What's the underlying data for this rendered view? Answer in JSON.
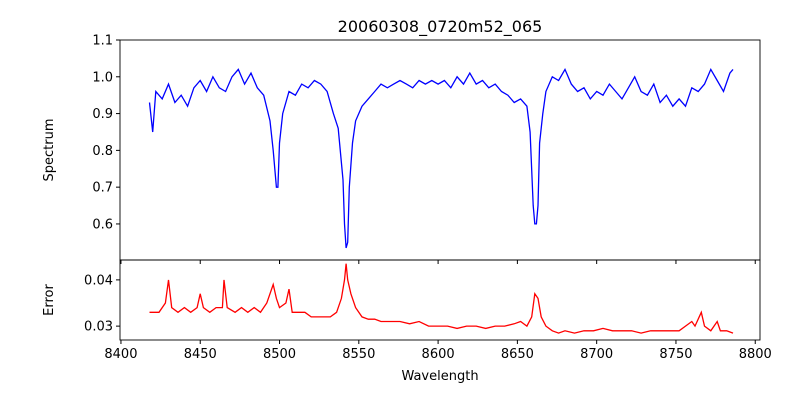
{
  "chart_data": [
    {
      "type": "line",
      "title": "20060308_0720m52_065",
      "xlabel": "",
      "ylabel": "Spectrum",
      "xlim": [
        8399.4,
        8803
      ],
      "ylim": [
        0.502,
        1.1
      ],
      "yticks": [
        0.6,
        0.7,
        0.8,
        0.9,
        1.0,
        1.1
      ],
      "ytick_labels": [
        "0.6",
        "0.7",
        "0.8",
        "0.9",
        "1.0",
        "1.1"
      ],
      "color": "#0000ff",
      "x": [
        8418,
        8420,
        8422,
        8426,
        8430,
        8434,
        8438,
        8442,
        8446,
        8450,
        8454,
        8458,
        8462,
        8466,
        8470,
        8474,
        8478,
        8482,
        8486,
        8490,
        8494,
        8496,
        8498,
        8499,
        8500,
        8502,
        8506,
        8510,
        8514,
        8518,
        8522,
        8526,
        8530,
        8534,
        8537,
        8540,
        8541,
        8542,
        8543,
        8544,
        8546,
        8548,
        8552,
        8556,
        8560,
        8564,
        8568,
        8572,
        8576,
        8580,
        8584,
        8588,
        8592,
        8596,
        8600,
        8604,
        8608,
        8612,
        8616,
        8620,
        8624,
        8628,
        8632,
        8636,
        8640,
        8644,
        8648,
        8652,
        8656,
        8658,
        8660,
        8661,
        8662,
        8663,
        8664,
        8666,
        8668,
        8672,
        8676,
        8680,
        8684,
        8688,
        8692,
        8696,
        8700,
        8704,
        8708,
        8712,
        8716,
        8720,
        8724,
        8728,
        8732,
        8736,
        8740,
        8744,
        8748,
        8752,
        8756,
        8760,
        8764,
        8768,
        8772,
        8776,
        8780,
        8784,
        8786
      ],
      "y": [
        0.93,
        0.85,
        0.96,
        0.94,
        0.98,
        0.93,
        0.95,
        0.92,
        0.97,
        0.99,
        0.96,
        1.0,
        0.97,
        0.96,
        1.0,
        1.02,
        0.98,
        1.01,
        0.97,
        0.95,
        0.88,
        0.8,
        0.7,
        0.7,
        0.82,
        0.9,
        0.96,
        0.95,
        0.98,
        0.97,
        0.99,
        0.98,
        0.96,
        0.9,
        0.86,
        0.72,
        0.6,
        0.535,
        0.55,
        0.7,
        0.82,
        0.88,
        0.92,
        0.94,
        0.96,
        0.98,
        0.97,
        0.98,
        0.99,
        0.98,
        0.97,
        0.99,
        0.98,
        0.99,
        0.98,
        0.99,
        0.97,
        1.0,
        0.98,
        1.01,
        0.98,
        0.99,
        0.97,
        0.98,
        0.96,
        0.95,
        0.93,
        0.94,
        0.92,
        0.85,
        0.65,
        0.6,
        0.6,
        0.65,
        0.82,
        0.9,
        0.96,
        1.0,
        0.99,
        1.02,
        0.98,
        0.96,
        0.97,
        0.94,
        0.96,
        0.95,
        0.98,
        0.96,
        0.94,
        0.97,
        1.0,
        0.96,
        0.95,
        0.98,
        0.93,
        0.95,
        0.92,
        0.94,
        0.92,
        0.97,
        0.96,
        0.98,
        1.02,
        0.99,
        0.96,
        1.01,
        1.02
      ]
    },
    {
      "type": "line",
      "xlabel": "Wavelength",
      "ylabel": "Error",
      "xlim": [
        8399.4,
        8803
      ],
      "ylim": [
        0.027,
        0.0443
      ],
      "xticks": [
        8400,
        8450,
        8500,
        8550,
        8600,
        8650,
        8700,
        8750,
        8800
      ],
      "xtick_labels": [
        "8400",
        "8450",
        "8500",
        "8550",
        "8600",
        "8650",
        "8700",
        "8750",
        "8800"
      ],
      "yticks": [
        0.03,
        0.04
      ],
      "ytick_labels": [
        "0.03",
        "0.04"
      ],
      "color": "#ff0000",
      "x": [
        8418,
        8424,
        8428,
        8430,
        8432,
        8436,
        8440,
        8444,
        8448,
        8450,
        8452,
        8456,
        8460,
        8464,
        8465,
        8467,
        8472,
        8476,
        8480,
        8484,
        8488,
        8492,
        8496,
        8498,
        8500,
        8504,
        8506,
        8508,
        8512,
        8516,
        8520,
        8524,
        8528,
        8532,
        8536,
        8539,
        8541,
        8542,
        8543,
        8545,
        8548,
        8552,
        8556,
        8560,
        8564,
        8570,
        8576,
        8582,
        8588,
        8594,
        8600,
        8606,
        8612,
        8618,
        8624,
        8630,
        8636,
        8642,
        8648,
        8652,
        8656,
        8659,
        8661,
        8663,
        8665,
        8668,
        8672,
        8676,
        8680,
        8686,
        8692,
        8698,
        8704,
        8710,
        8716,
        8722,
        8728,
        8734,
        8740,
        8746,
        8752,
        8756,
        8760,
        8762,
        8766,
        8768,
        8772,
        8776,
        8778,
        8782,
        8786
      ],
      "y": [
        0.033,
        0.033,
        0.035,
        0.04,
        0.034,
        0.033,
        0.034,
        0.033,
        0.034,
        0.037,
        0.034,
        0.033,
        0.034,
        0.034,
        0.04,
        0.034,
        0.033,
        0.034,
        0.033,
        0.034,
        0.033,
        0.035,
        0.039,
        0.036,
        0.034,
        0.035,
        0.038,
        0.033,
        0.033,
        0.033,
        0.032,
        0.032,
        0.032,
        0.032,
        0.033,
        0.036,
        0.04,
        0.0435,
        0.04,
        0.037,
        0.034,
        0.032,
        0.0315,
        0.0315,
        0.031,
        0.031,
        0.031,
        0.0305,
        0.031,
        0.03,
        0.03,
        0.03,
        0.0295,
        0.03,
        0.03,
        0.0295,
        0.03,
        0.03,
        0.0305,
        0.031,
        0.03,
        0.032,
        0.037,
        0.036,
        0.032,
        0.03,
        0.029,
        0.0285,
        0.029,
        0.0285,
        0.029,
        0.029,
        0.0295,
        0.029,
        0.029,
        0.029,
        0.0285,
        0.029,
        0.029,
        0.029,
        0.029,
        0.03,
        0.031,
        0.03,
        0.033,
        0.03,
        0.029,
        0.031,
        0.029,
        0.029,
        0.0285
      ]
    }
  ]
}
